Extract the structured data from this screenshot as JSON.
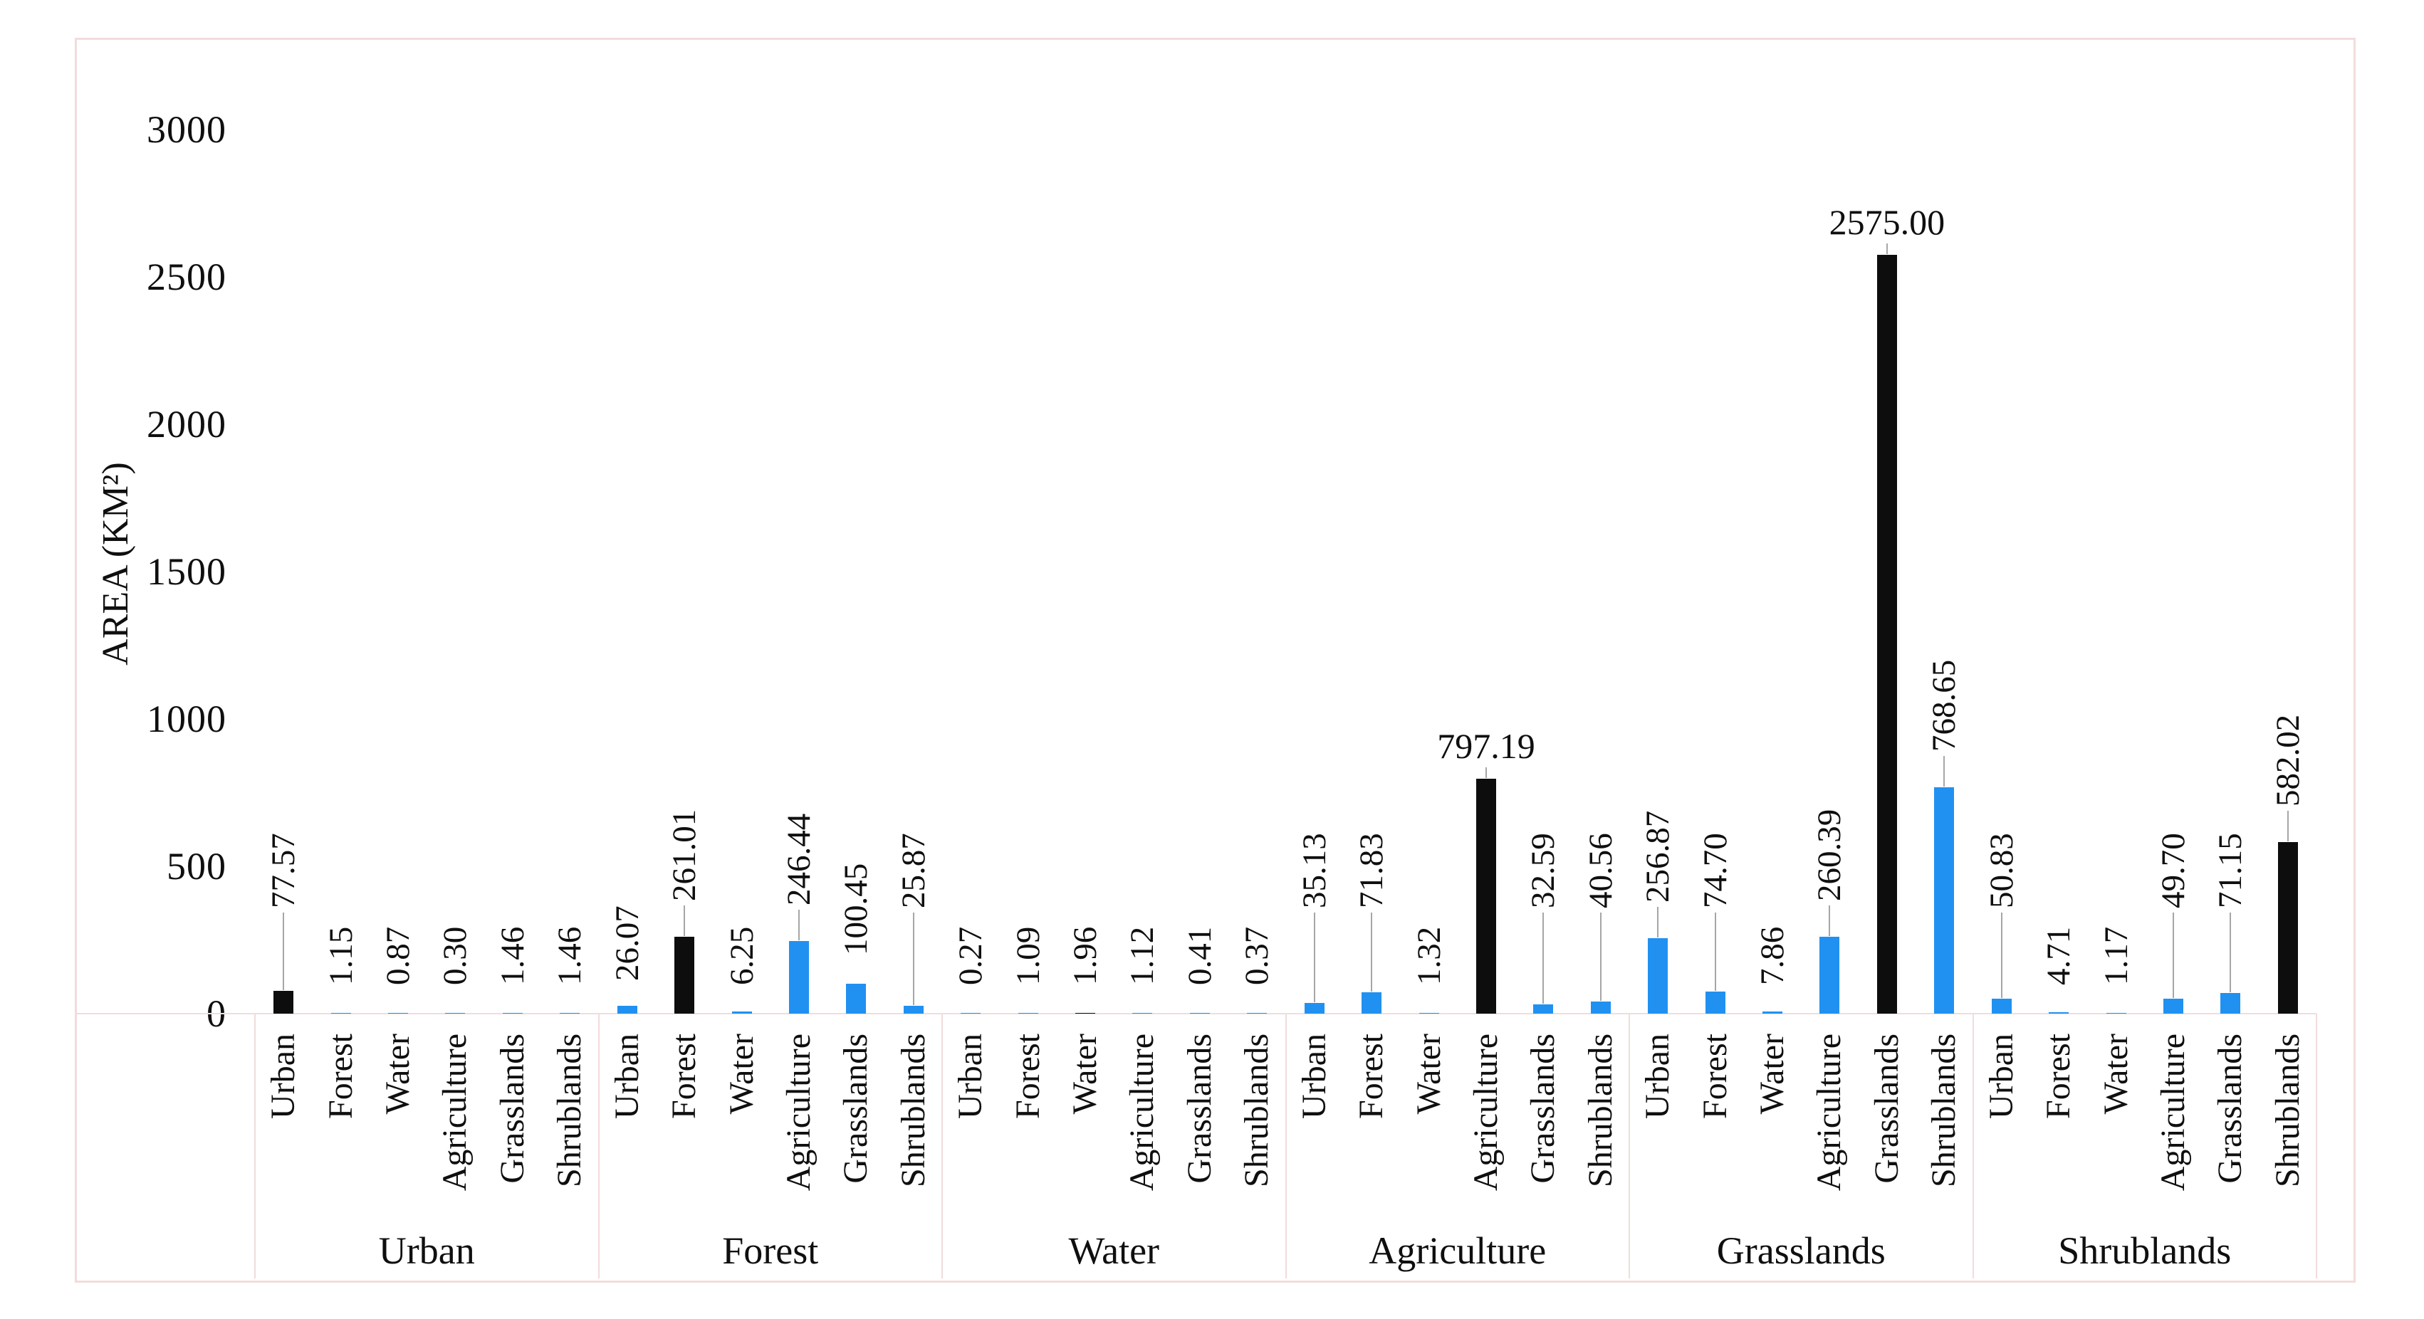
{
  "figure": {
    "ylabel": "AREA (KM²)"
  },
  "colors": {
    "bar_blue": "#2191f1",
    "bar_black": "#0d0d0d",
    "table_line_pink": "#f2dcdb",
    "leader_gray": "#a6a6a6",
    "text": "#0f0f0f",
    "background": "#ffffff"
  },
  "chart_data": {
    "type": "bar",
    "title": "",
    "xlabel": "",
    "ylabel": "AREA (KM²)",
    "ylim": [
      0,
      3000
    ],
    "yticks": [
      "0",
      "500",
      "1000",
      "1500",
      "2000",
      "2500",
      "3000"
    ],
    "ytick_values": [
      0,
      500,
      1000,
      1500,
      2000,
      2500,
      3000
    ],
    "grid": false,
    "legend_position": "none",
    "axis_style": "two-level category axis, labels rotated 270°",
    "categories_sub": [
      "Urban",
      "Forest",
      "Water",
      "Agriculture",
      "Grasslands",
      "Shrublands"
    ],
    "groups": [
      {
        "name": "Urban",
        "bars": [
          {
            "cat": "Urban",
            "value": 77.57,
            "label": "77.57",
            "color": "black"
          },
          {
            "cat": "Forest",
            "value": 1.15,
            "label": "1.15",
            "color": "blue"
          },
          {
            "cat": "Water",
            "value": 0.87,
            "label": "0.87",
            "color": "blue"
          },
          {
            "cat": "Agriculture",
            "value": 0.3,
            "label": "0.30",
            "color": "blue"
          },
          {
            "cat": "Grasslands",
            "value": 1.46,
            "label": "1.46",
            "color": "blue"
          },
          {
            "cat": "Shrublands",
            "value": 1.46,
            "label": "1.46",
            "color": "blue"
          }
        ]
      },
      {
        "name": "Forest",
        "bars": [
          {
            "cat": "Urban",
            "value": 26.07,
            "label": "26.07",
            "color": "blue"
          },
          {
            "cat": "Forest",
            "value": 261.01,
            "label": "261.01",
            "color": "black"
          },
          {
            "cat": "Water",
            "value": 6.25,
            "label": "6.25",
            "color": "blue"
          },
          {
            "cat": "Agriculture",
            "value": 246.44,
            "label": "246.44",
            "color": "blue"
          },
          {
            "cat": "Grasslands",
            "value": 100.45,
            "label": "100.45",
            "color": "blue",
            "no_leader": true
          },
          {
            "cat": "Shrublands",
            "value": 25.87,
            "label": "25.87",
            "color": "blue",
            "raised": true
          }
        ]
      },
      {
        "name": "Water",
        "bars": [
          {
            "cat": "Urban",
            "value": 0.27,
            "label": "0.27",
            "color": "blue"
          },
          {
            "cat": "Forest",
            "value": 1.09,
            "label": "1.09",
            "color": "blue"
          },
          {
            "cat": "Water",
            "value": 1.96,
            "label": "1.96",
            "color": "black"
          },
          {
            "cat": "Agriculture",
            "value": 1.12,
            "label": "1.12",
            "color": "blue"
          },
          {
            "cat": "Grasslands",
            "value": 0.41,
            "label": "0.41",
            "color": "blue"
          },
          {
            "cat": "Shrublands",
            "value": 0.37,
            "label": "0.37",
            "color": "blue"
          }
        ]
      },
      {
        "name": "Agriculture",
        "bars": [
          {
            "cat": "Urban",
            "value": 35.13,
            "label": "35.13",
            "color": "blue"
          },
          {
            "cat": "Forest",
            "value": 71.83,
            "label": "71.83",
            "color": "blue"
          },
          {
            "cat": "Water",
            "value": 1.32,
            "label": "1.32",
            "color": "blue"
          },
          {
            "cat": "Agriculture",
            "value": 797.19,
            "label": "797.19",
            "color": "black",
            "horizontal": true
          },
          {
            "cat": "Grasslands",
            "value": 32.59,
            "label": "32.59",
            "color": "blue"
          },
          {
            "cat": "Shrublands",
            "value": 40.56,
            "label": "40.56",
            "color": "blue"
          }
        ]
      },
      {
        "name": "Grasslands",
        "bars": [
          {
            "cat": "Urban",
            "value": 256.87,
            "label": "256.87",
            "color": "blue"
          },
          {
            "cat": "Forest",
            "value": 74.7,
            "label": "74.70",
            "color": "blue"
          },
          {
            "cat": "Water",
            "value": 7.86,
            "label": "7.86",
            "color": "blue"
          },
          {
            "cat": "Agriculture",
            "value": 260.39,
            "label": "260.39",
            "color": "blue"
          },
          {
            "cat": "Grasslands",
            "value": 2575.0,
            "label": "2575.00",
            "color": "black",
            "horizontal": true
          },
          {
            "cat": "Shrublands",
            "value": 768.65,
            "label": "768.65",
            "color": "blue"
          }
        ]
      },
      {
        "name": "Shrublands",
        "bars": [
          {
            "cat": "Urban",
            "value": 50.83,
            "label": "50.83",
            "color": "blue"
          },
          {
            "cat": "Forest",
            "value": 4.71,
            "label": "4.71",
            "color": "blue"
          },
          {
            "cat": "Water",
            "value": 1.17,
            "label": "1.17",
            "color": "blue"
          },
          {
            "cat": "Agriculture",
            "value": 49.7,
            "label": "49.70",
            "color": "blue"
          },
          {
            "cat": "Grasslands",
            "value": 71.15,
            "label": "71.15",
            "color": "blue"
          },
          {
            "cat": "Shrublands",
            "value": 582.02,
            "label": "582.02",
            "color": "black"
          }
        ]
      }
    ]
  }
}
